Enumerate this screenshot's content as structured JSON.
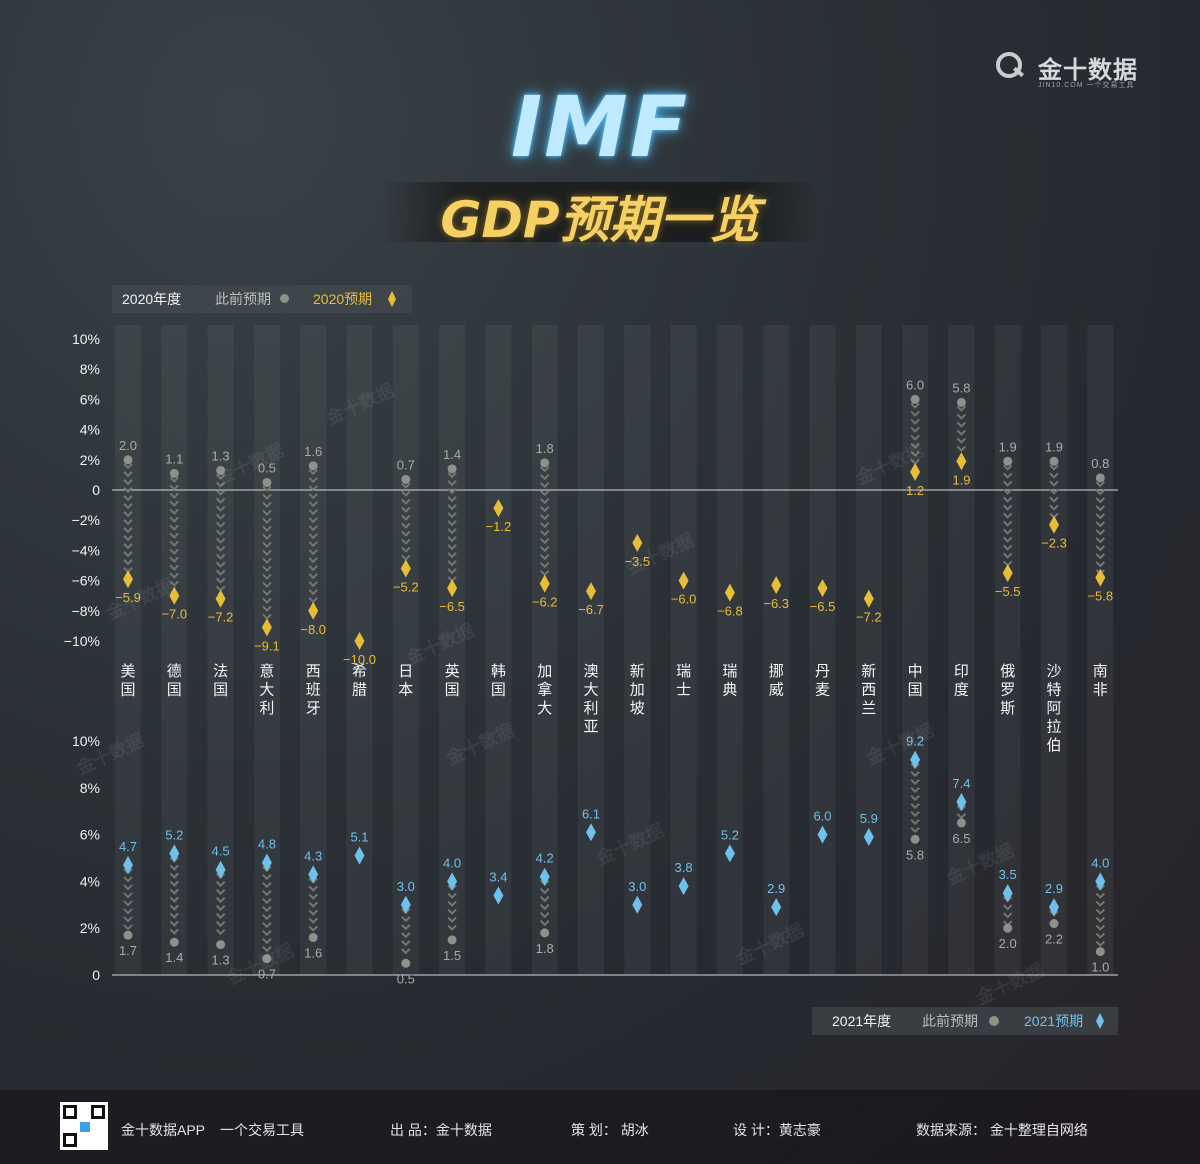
{
  "brand": {
    "name": "金十数据",
    "sub": "JIN10.COM 一个交易工具"
  },
  "title": {
    "main": "IMF",
    "sub": "GDP预期一览"
  },
  "legend_2020": {
    "year": "2020年度",
    "prev": "此前预期",
    "new": "2020预期"
  },
  "legend_2021": {
    "year": "2021年度",
    "prev": "此前预期",
    "new": "2021预期"
  },
  "watermark": "金十数据",
  "colors": {
    "prev": "#8e9189",
    "forecast2020": "#e7bd38",
    "forecast2021": "#6ec1ea",
    "text": "#d8d8d8"
  },
  "chart_data": [
    {
      "type": "dumbbell",
      "title": "2020年度",
      "yticks": [
        "10%",
        "8%",
        "6%",
        "4%",
        "2%",
        "0",
        "−2%",
        "−4%",
        "−6%",
        "−8%",
        "−10%"
      ],
      "ylim": [
        -10,
        10
      ],
      "categories": [
        "美国",
        "德国",
        "法国",
        "意大利",
        "西班牙",
        "希腊",
        "日本",
        "英国",
        "韩国",
        "加拿大",
        "澳大利亚",
        "新加坡",
        "瑞士",
        "瑞典",
        "挪威",
        "丹麦",
        "新西兰",
        "中国",
        "印度",
        "俄罗斯",
        "沙特阿拉伯",
        "南非"
      ],
      "series": [
        {
          "name": "此前预期",
          "values": [
            2.0,
            1.1,
            1.3,
            0.5,
            1.6,
            null,
            0.7,
            1.4,
            null,
            1.8,
            null,
            null,
            null,
            null,
            null,
            null,
            null,
            6.0,
            5.8,
            1.9,
            1.9,
            0.8
          ],
          "labels": [
            "2.0",
            "1.1",
            "1.3",
            "0.5",
            "1.6",
            "",
            "0.7",
            "1.4",
            "",
            "1.8",
            "",
            "",
            "",
            "",
            "",
            "",
            "",
            "6.0",
            "5.8",
            "1.9",
            "1.9",
            "0.8"
          ]
        },
        {
          "name": "2020预期",
          "values": [
            -5.9,
            -7.0,
            -7.2,
            -9.1,
            -8.0,
            -10.0,
            -5.2,
            -6.5,
            -1.2,
            -6.2,
            -6.7,
            -3.5,
            -6.0,
            -6.8,
            -6.3,
            -6.5,
            -7.2,
            1.2,
            1.9,
            -5.5,
            -2.3,
            -5.8
          ],
          "labels": [
            "−5.9",
            "−7.0",
            "−7.2",
            "−9.1",
            "−8.0",
            "−10.0",
            "−5.2",
            "−6.5",
            "−1.2",
            "−6.2",
            "−6.7",
            "−3.5",
            "−6.0",
            "−6.8",
            "−6.3",
            "−6.5",
            "−7.2",
            "1.2",
            "1.9",
            "−5.5",
            "−2.3",
            "−5.8"
          ]
        }
      ]
    },
    {
      "type": "dumbbell",
      "title": "2021年度",
      "yticks": [
        "10%",
        "8%",
        "6%",
        "4%",
        "2%",
        "0"
      ],
      "ylim": [
        0,
        10
      ],
      "categories": [
        "美国",
        "德国",
        "法国",
        "意大利",
        "西班牙",
        "希腊",
        "日本",
        "英国",
        "韩国",
        "加拿大",
        "澳大利亚",
        "新加坡",
        "瑞士",
        "瑞典",
        "挪威",
        "丹麦",
        "新西兰",
        "中国",
        "印度",
        "俄罗斯",
        "沙特阿拉伯",
        "南非"
      ],
      "series": [
        {
          "name": "此前预期",
          "values": [
            1.7,
            1.4,
            1.3,
            0.7,
            1.6,
            null,
            0.5,
            1.5,
            null,
            1.8,
            null,
            null,
            null,
            null,
            null,
            null,
            null,
            5.8,
            6.5,
            2.0,
            2.2,
            1.0
          ],
          "labels": [
            "1.7",
            "1.4",
            "1.3",
            "0.7",
            "1.6",
            "",
            "0.5",
            "1.5",
            "",
            "1.8",
            "",
            "",
            "",
            "",
            "",
            "",
            "",
            "5.8",
            "6.5",
            "2.0",
            "2.2",
            "1.0"
          ]
        },
        {
          "name": "2021预期",
          "values": [
            4.7,
            5.2,
            4.5,
            4.8,
            4.3,
            5.1,
            3.0,
            4.0,
            3.4,
            4.2,
            6.1,
            3.0,
            3.8,
            5.2,
            2.9,
            6.0,
            5.9,
            9.2,
            7.4,
            3.5,
            2.9,
            4.0
          ],
          "labels": [
            "4.7",
            "5.2",
            "4.5",
            "4.8",
            "4.3",
            "5.1",
            "3.0",
            "4.0",
            "3.4",
            "4.2",
            "6.1",
            "3.0",
            "3.8",
            "5.2",
            "2.9",
            "6.0",
            "5.9",
            "9.2",
            "7.4",
            "3.5",
            "2.9",
            "4.0"
          ]
        }
      ]
    }
  ],
  "footer": {
    "app": "金十数据APP",
    "tagline": "一个交易工具",
    "producer": "出 品：金十数据",
    "planner": "策 划： 胡冰",
    "designer": "设 计：黄志豪",
    "source": "数据来源：  金十整理自网络"
  }
}
